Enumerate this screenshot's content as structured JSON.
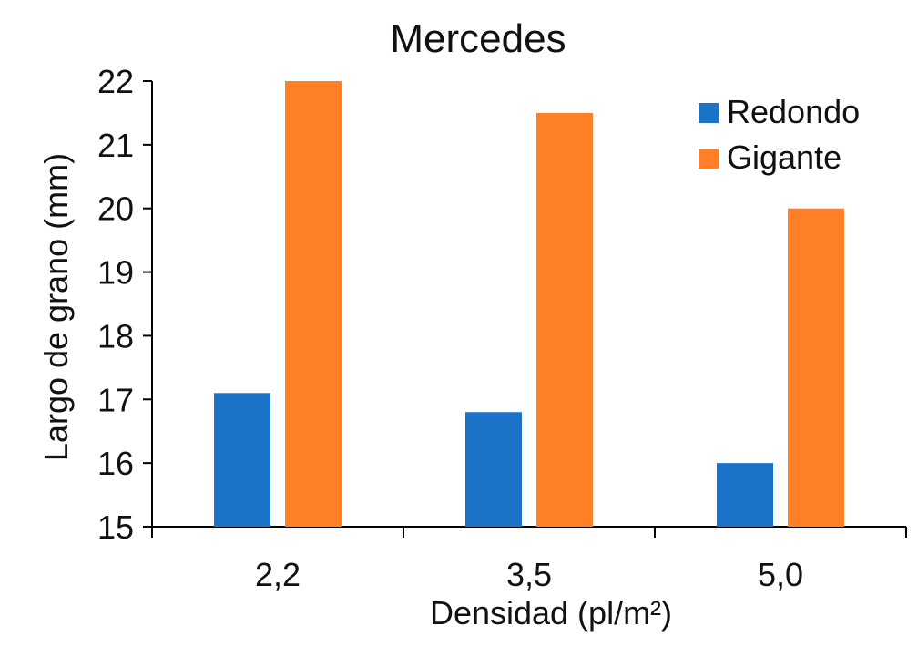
{
  "chart_data": {
    "type": "bar",
    "title": "Mercedes",
    "xlabel": "Densidad (pl/m²)",
    "ylabel": "Largo de grano (mm)",
    "categories": [
      "2,2",
      "3,5",
      "5,0"
    ],
    "series": [
      {
        "name": "Redondo",
        "values": [
          17.1,
          16.8,
          16.0
        ],
        "color": "#1B72C9"
      },
      {
        "name": "Gigante",
        "values": [
          22.0,
          21.5,
          20.0
        ],
        "color": "#FF7F27"
      }
    ],
    "ylim": [
      15,
      22
    ],
    "yticks": [
      15,
      16,
      17,
      18,
      19,
      20,
      21,
      22
    ],
    "grid": false,
    "legend_position": "top-right"
  }
}
